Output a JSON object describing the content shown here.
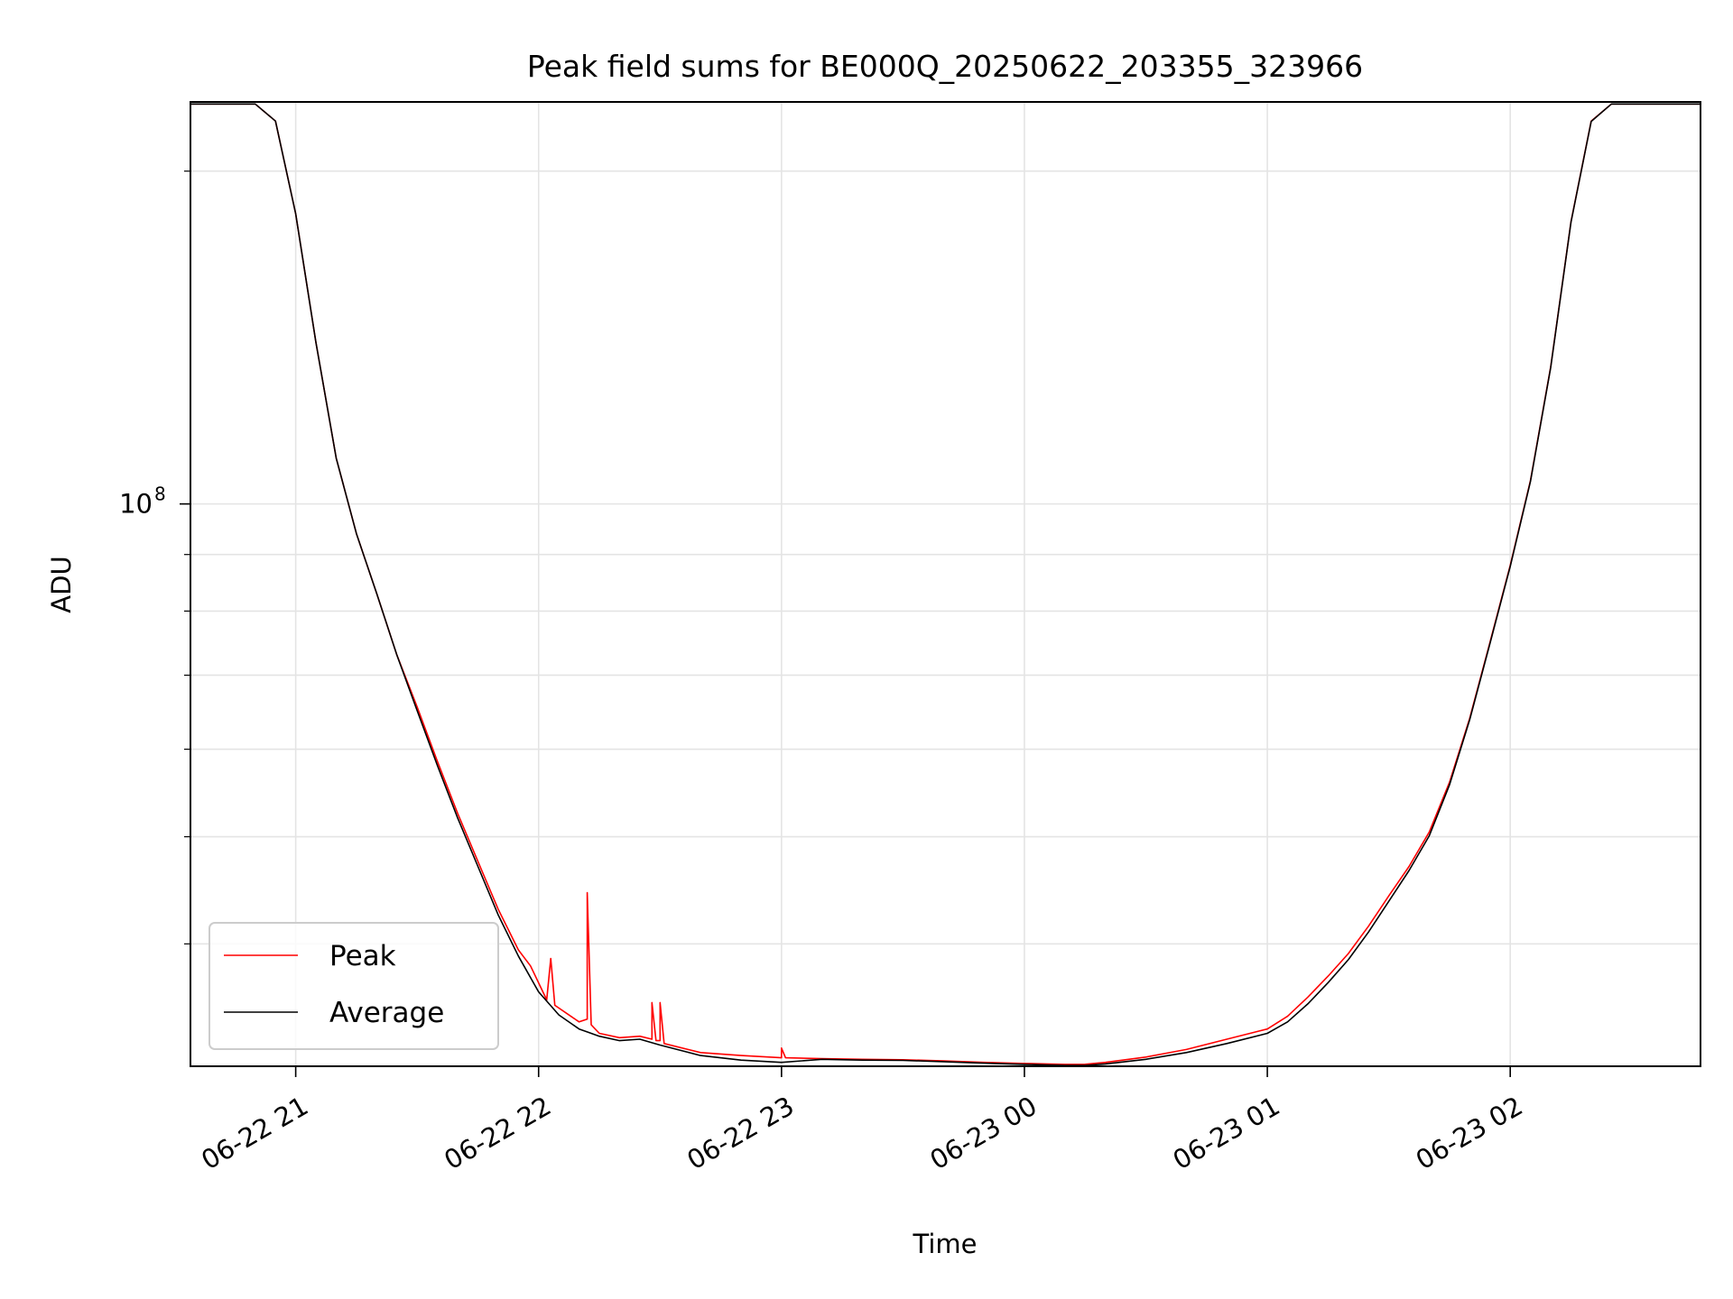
{
  "chart_data": {
    "type": "line",
    "title": "Peak field sums for BE000Q_20250622_203355_323966",
    "xlabel": "Time",
    "ylabel": "ADU",
    "yscale": "log",
    "xlim": [
      "2025-06-22 20:34",
      "2025-06-23 02:47"
    ],
    "ylim": [
      31000000,
      231000000
    ],
    "grid": true,
    "legend_position": "lower-left",
    "x_ticks": [
      {
        "time": "2025-06-22 21:00",
        "label": "06-22 21"
      },
      {
        "time": "2025-06-22 22:00",
        "label": "06-22 22"
      },
      {
        "time": "2025-06-22 23:00",
        "label": "06-22 23"
      },
      {
        "time": "2025-06-23 00:00",
        "label": "06-23 00"
      },
      {
        "time": "2025-06-23 01:00",
        "label": "06-23 01"
      },
      {
        "time": "2025-06-23 02:00",
        "label": "06-23 02"
      }
    ],
    "y_major_ticks": [
      {
        "value": 100000000,
        "label_base": "10",
        "label_exp": "8"
      }
    ],
    "y_minor_ticks": [
      40000000,
      50000000,
      60000000,
      70000000,
      80000000,
      90000000,
      200000000
    ],
    "series": [
      {
        "name": "Peak",
        "color": "#ff0000",
        "points": [
          [
            "2025-06-22 20:34",
            230000000
          ],
          [
            "2025-06-22 20:50",
            230000000
          ],
          [
            "2025-06-22 20:55",
            222000000
          ],
          [
            "2025-06-22 21:00",
            183000000
          ],
          [
            "2025-06-22 21:05",
            140000000
          ],
          [
            "2025-06-22 21:10",
            110000000
          ],
          [
            "2025-06-22 21:15",
            94000000
          ],
          [
            "2025-06-22 21:20",
            83000000
          ],
          [
            "2025-06-22 21:25",
            73000000
          ],
          [
            "2025-06-22 21:30",
            65500000
          ],
          [
            "2025-06-22 21:35",
            58500000
          ],
          [
            "2025-06-22 21:40",
            52500000
          ],
          [
            "2025-06-22 21:45",
            47500000
          ],
          [
            "2025-06-22 21:50",
            43000000
          ],
          [
            "2025-06-22 21:55",
            39500000
          ],
          [
            "2025-06-22 21:58",
            38200000
          ],
          [
            "2025-06-22 22:02",
            35600000
          ],
          [
            "2025-06-22 22:03",
            38800000
          ],
          [
            "2025-06-22 22:04",
            35200000
          ],
          [
            "2025-06-22 22:10",
            34000000
          ],
          [
            "2025-06-22 22:12",
            34200000
          ],
          [
            "2025-06-22 22:12",
            44500000
          ],
          [
            "2025-06-22 22:13",
            33800000
          ],
          [
            "2025-06-22 22:15",
            33200000
          ],
          [
            "2025-06-22 22:20",
            32900000
          ],
          [
            "2025-06-22 22:25",
            33000000
          ],
          [
            "2025-06-22 22:28",
            32800000
          ],
          [
            "2025-06-22 22:28",
            35400000
          ],
          [
            "2025-06-22 22:29",
            32700000
          ],
          [
            "2025-06-22 22:30",
            32700000
          ],
          [
            "2025-06-22 22:30",
            35400000
          ],
          [
            "2025-06-22 22:31",
            32500000
          ],
          [
            "2025-06-22 22:40",
            31900000
          ],
          [
            "2025-06-22 22:50",
            31700000
          ],
          [
            "2025-06-22 23:00",
            31550000
          ],
          [
            "2025-06-22 23:00",
            32200000
          ],
          [
            "2025-06-22 23:01",
            31550000
          ],
          [
            "2025-06-22 23:10",
            31500000
          ],
          [
            "2025-06-22 23:20",
            31450000
          ],
          [
            "2025-06-22 23:30",
            31420000
          ],
          [
            "2025-06-22 23:40",
            31350000
          ],
          [
            "2025-06-22 23:50",
            31250000
          ],
          [
            "2025-06-23 00:00",
            31180000
          ],
          [
            "2025-06-23 00:10",
            31120000
          ],
          [
            "2025-06-23 00:15",
            31130000
          ],
          [
            "2025-06-23 00:20",
            31250000
          ],
          [
            "2025-06-23 00:30",
            31600000
          ],
          [
            "2025-06-23 00:40",
            32100000
          ],
          [
            "2025-06-23 00:50",
            32800000
          ],
          [
            "2025-06-23 01:00",
            33500000
          ],
          [
            "2025-06-23 01:05",
            34400000
          ],
          [
            "2025-06-23 01:10",
            35800000
          ],
          [
            "2025-06-23 01:15",
            37400000
          ],
          [
            "2025-06-23 01:20",
            39200000
          ],
          [
            "2025-06-23 01:25",
            41500000
          ],
          [
            "2025-06-23 01:30",
            44200000
          ],
          [
            "2025-06-23 01:35",
            47000000
          ],
          [
            "2025-06-23 01:40",
            50500000
          ],
          [
            "2025-06-23 01:45",
            56000000
          ],
          [
            "2025-06-23 01:50",
            64000000
          ],
          [
            "2025-06-23 01:55",
            75000000
          ],
          [
            "2025-06-23 02:00",
            88000000
          ],
          [
            "2025-06-23 02:05",
            105000000
          ],
          [
            "2025-06-23 02:10",
            133000000
          ],
          [
            "2025-06-23 02:15",
            180000000
          ],
          [
            "2025-06-23 02:20",
            222000000
          ],
          [
            "2025-06-23 02:25",
            230000000
          ],
          [
            "2025-06-23 02:47",
            230000000
          ]
        ]
      },
      {
        "name": "Average",
        "color": "#000000",
        "points": [
          [
            "2025-06-22 20:34",
            230000000
          ],
          [
            "2025-06-22 20:50",
            230000000
          ],
          [
            "2025-06-22 20:55",
            222000000
          ],
          [
            "2025-06-22 21:00",
            183000000
          ],
          [
            "2025-06-22 21:05",
            140000000
          ],
          [
            "2025-06-22 21:10",
            110000000
          ],
          [
            "2025-06-22 21:15",
            94000000
          ],
          [
            "2025-06-22 21:20",
            83000000
          ],
          [
            "2025-06-22 21:25",
            73000000
          ],
          [
            "2025-06-22 21:30",
            65000000
          ],
          [
            "2025-06-22 21:35",
            58000000
          ],
          [
            "2025-06-22 21:40",
            52000000
          ],
          [
            "2025-06-22 21:45",
            47000000
          ],
          [
            "2025-06-22 21:50",
            42500000
          ],
          [
            "2025-06-22 21:55",
            39000000
          ],
          [
            "2025-06-22 22:00",
            36200000
          ],
          [
            "2025-06-22 22:05",
            34500000
          ],
          [
            "2025-06-22 22:10",
            33500000
          ],
          [
            "2025-06-22 22:15",
            33000000
          ],
          [
            "2025-06-22 22:20",
            32700000
          ],
          [
            "2025-06-22 22:25",
            32800000
          ],
          [
            "2025-06-22 22:30",
            32400000
          ],
          [
            "2025-06-22 22:40",
            31700000
          ],
          [
            "2025-06-22 22:50",
            31400000
          ],
          [
            "2025-06-22 23:00",
            31250000
          ],
          [
            "2025-06-22 23:10",
            31450000
          ],
          [
            "2025-06-22 23:20",
            31400000
          ],
          [
            "2025-06-22 23:30",
            31380000
          ],
          [
            "2025-06-22 23:40",
            31300000
          ],
          [
            "2025-06-22 23:50",
            31200000
          ],
          [
            "2025-06-23 00:00",
            31120000
          ],
          [
            "2025-06-23 00:10",
            31060000
          ],
          [
            "2025-06-23 00:15",
            31050000
          ],
          [
            "2025-06-23 00:20",
            31150000
          ],
          [
            "2025-06-23 00:30",
            31450000
          ],
          [
            "2025-06-23 00:40",
            31900000
          ],
          [
            "2025-06-23 00:50",
            32500000
          ],
          [
            "2025-06-23 01:00",
            33200000
          ],
          [
            "2025-06-23 01:05",
            34000000
          ],
          [
            "2025-06-23 01:10",
            35300000
          ],
          [
            "2025-06-23 01:15",
            36900000
          ],
          [
            "2025-06-23 01:20",
            38700000
          ],
          [
            "2025-06-23 01:25",
            41000000
          ],
          [
            "2025-06-23 01:30",
            43700000
          ],
          [
            "2025-06-23 01:35",
            46600000
          ],
          [
            "2025-06-23 01:40",
            50100000
          ],
          [
            "2025-06-23 01:45",
            55700000
          ],
          [
            "2025-06-23 01:50",
            63800000
          ],
          [
            "2025-06-23 01:55",
            74800000
          ],
          [
            "2025-06-23 02:00",
            87800000
          ],
          [
            "2025-06-23 02:05",
            104800000
          ],
          [
            "2025-06-23 02:10",
            132800000
          ],
          [
            "2025-06-23 02:15",
            179800000
          ],
          [
            "2025-06-23 02:20",
            221800000
          ],
          [
            "2025-06-23 02:25",
            230000000
          ],
          [
            "2025-06-23 02:47",
            230000000
          ]
        ]
      }
    ]
  }
}
